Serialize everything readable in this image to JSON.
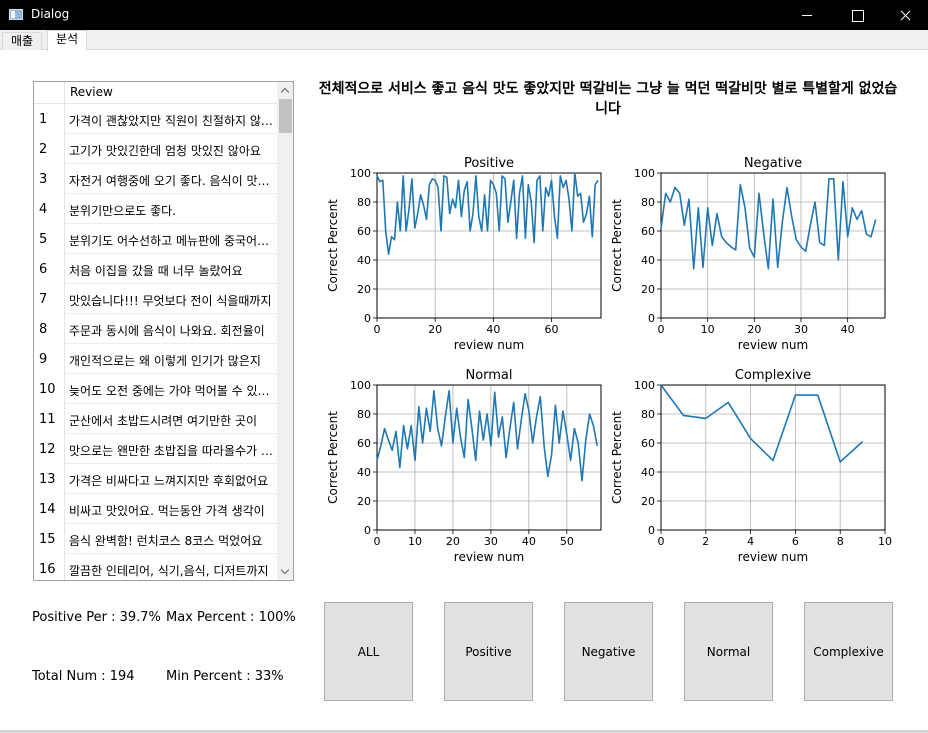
{
  "window": {
    "title": "Dialog"
  },
  "tabs": [
    {
      "label": "매출"
    },
    {
      "label": "분석"
    }
  ],
  "review_list": {
    "header": "Review",
    "rows": [
      {
        "num": "1",
        "text": "가격이 괜찮았지만 직원이 친절하지 않아서"
      },
      {
        "num": "2",
        "text": "고기가 맛있긴한데 엄청 맛있진 않아요"
      },
      {
        "num": "3",
        "text": "자전거 여행중에 오기 좋다. 음식이 맛있다"
      },
      {
        "num": "4",
        "text": "분위기만으로도 좋다."
      },
      {
        "num": "5",
        "text": "분위기도 어수선하고 메뉴판에 중국어가 많아"
      },
      {
        "num": "6",
        "text": "처음 이집을 갔을 때 너무 놀랐어요"
      },
      {
        "num": "7",
        "text": "맛있습니다!!! 무엇보다 전이 식을때까지"
      },
      {
        "num": "8",
        "text": "주문과 동시에 음식이 나와요. 회전율이"
      },
      {
        "num": "9",
        "text": "개인적으로는 왜 이렇게 인기가 많은지"
      },
      {
        "num": "10",
        "text": "늦어도 오전 중에는 가야 먹어볼 수 있어요"
      },
      {
        "num": "11",
        "text": "군산에서 초밥드시려면 여기만한 곳이"
      },
      {
        "num": "12",
        "text": "맛으로는 왠만한 초밥집을 따라올수가 없어요"
      },
      {
        "num": "13",
        "text": "가격은 비싸다고 느껴지지만 후회없어요"
      },
      {
        "num": "14",
        "text": "비싸고 맛있어요. 먹는동안 가격 생각이"
      },
      {
        "num": "15",
        "text": "음식 완벽함! 런치코스 8코스 먹었어요"
      },
      {
        "num": "16",
        "text": "깔끔한 인테리어, 식기,음식, 디저트까지"
      }
    ]
  },
  "stats": {
    "positive_per": "Positive Per : 39.7%",
    "max_percent": "Max Percent : 100%",
    "total_num": "Total Num : 194",
    "min_percent": "Min Percent : 33%"
  },
  "headline": "전체적으로 서비스 좋고 음식 맛도 좋았지만 떡갈비는 그냥 늘 먹던 떡갈비맛 별로 특별할게 없었습니다",
  "buttons": [
    "ALL",
    "Positive",
    "Negative",
    "Normal",
    "Complexive"
  ],
  "colors": {
    "line": "#1f77b4",
    "grid": "#b0b0b0"
  },
  "chart_data": [
    {
      "type": "line",
      "title": "Positive",
      "xlabel": "review num",
      "ylabel": "Correct Percent",
      "xlim": [
        0,
        77
      ],
      "ylim": [
        0,
        100
      ],
      "xticks": [
        0,
        20,
        40,
        60
      ],
      "yticks": [
        0,
        20,
        40,
        60,
        80,
        100
      ],
      "y": [
        98,
        94,
        95,
        60,
        44,
        56,
        54,
        80,
        60,
        98,
        60,
        75,
        96,
        62,
        72,
        85,
        78,
        68,
        92,
        96,
        95,
        90,
        60,
        98,
        97,
        72,
        82,
        76,
        95,
        70,
        88,
        94,
        60,
        72,
        98,
        70,
        60,
        85,
        60,
        95,
        92,
        86,
        60,
        98,
        96,
        66,
        80,
        95,
        55,
        86,
        98,
        55,
        92,
        80,
        52,
        95,
        98,
        60,
        90,
        84,
        95,
        70,
        55,
        98,
        90,
        95,
        82,
        60,
        100,
        84,
        86,
        66,
        72,
        84,
        56,
        92,
        95
      ]
    },
    {
      "type": "line",
      "title": "Negative",
      "xlabel": "review num",
      "ylabel": "Correct Percent",
      "xlim": [
        0,
        48
      ],
      "ylim": [
        0,
        100
      ],
      "xticks": [
        0,
        10,
        20,
        30,
        40
      ],
      "yticks": [
        0,
        20,
        40,
        60,
        80,
        100
      ],
      "y": [
        62,
        86,
        80,
        90,
        86,
        64,
        82,
        34,
        76,
        35,
        76,
        50,
        72,
        56,
        52,
        49,
        47,
        92,
        76,
        48,
        42,
        86,
        58,
        34,
        82,
        35,
        66,
        90,
        70,
        54,
        49,
        46,
        64,
        80,
        52,
        50,
        96,
        96,
        40,
        94,
        56,
        76,
        68,
        74,
        58,
        56,
        68
      ]
    },
    {
      "type": "line",
      "title": "Normal",
      "xlabel": "review num",
      "ylabel": "Correct Percent",
      "xlim": [
        0,
        59
      ],
      "ylim": [
        0,
        100
      ],
      "xticks": [
        0,
        10,
        20,
        30,
        40,
        50
      ],
      "yticks": [
        0,
        20,
        40,
        60,
        80,
        100
      ],
      "y": [
        48,
        58,
        70,
        62,
        55,
        68,
        43,
        72,
        56,
        72,
        48,
        85,
        60,
        84,
        68,
        96,
        70,
        58,
        78,
        96,
        60,
        84,
        64,
        50,
        90,
        70,
        48,
        82,
        62,
        80,
        58,
        95,
        64,
        78,
        50,
        70,
        88,
        56,
        76,
        94,
        82,
        60,
        78,
        92,
        58,
        37,
        52,
        86,
        60,
        82,
        66,
        48,
        70,
        60,
        34,
        62,
        80,
        72,
        58
      ]
    },
    {
      "type": "line",
      "title": "Complexive",
      "xlabel": "review num",
      "ylabel": "Correct Percent",
      "xlim": [
        0,
        10
      ],
      "ylim": [
        0,
        100
      ],
      "xticks": [
        0,
        2,
        4,
        6,
        8,
        10
      ],
      "yticks": [
        0,
        20,
        40,
        60,
        80,
        100
      ],
      "x": [
        0,
        1,
        2,
        3,
        4,
        5,
        6,
        7,
        8,
        9
      ],
      "y": [
        100,
        79,
        77,
        88,
        63,
        48,
        93,
        93,
        47,
        61
      ]
    }
  ]
}
